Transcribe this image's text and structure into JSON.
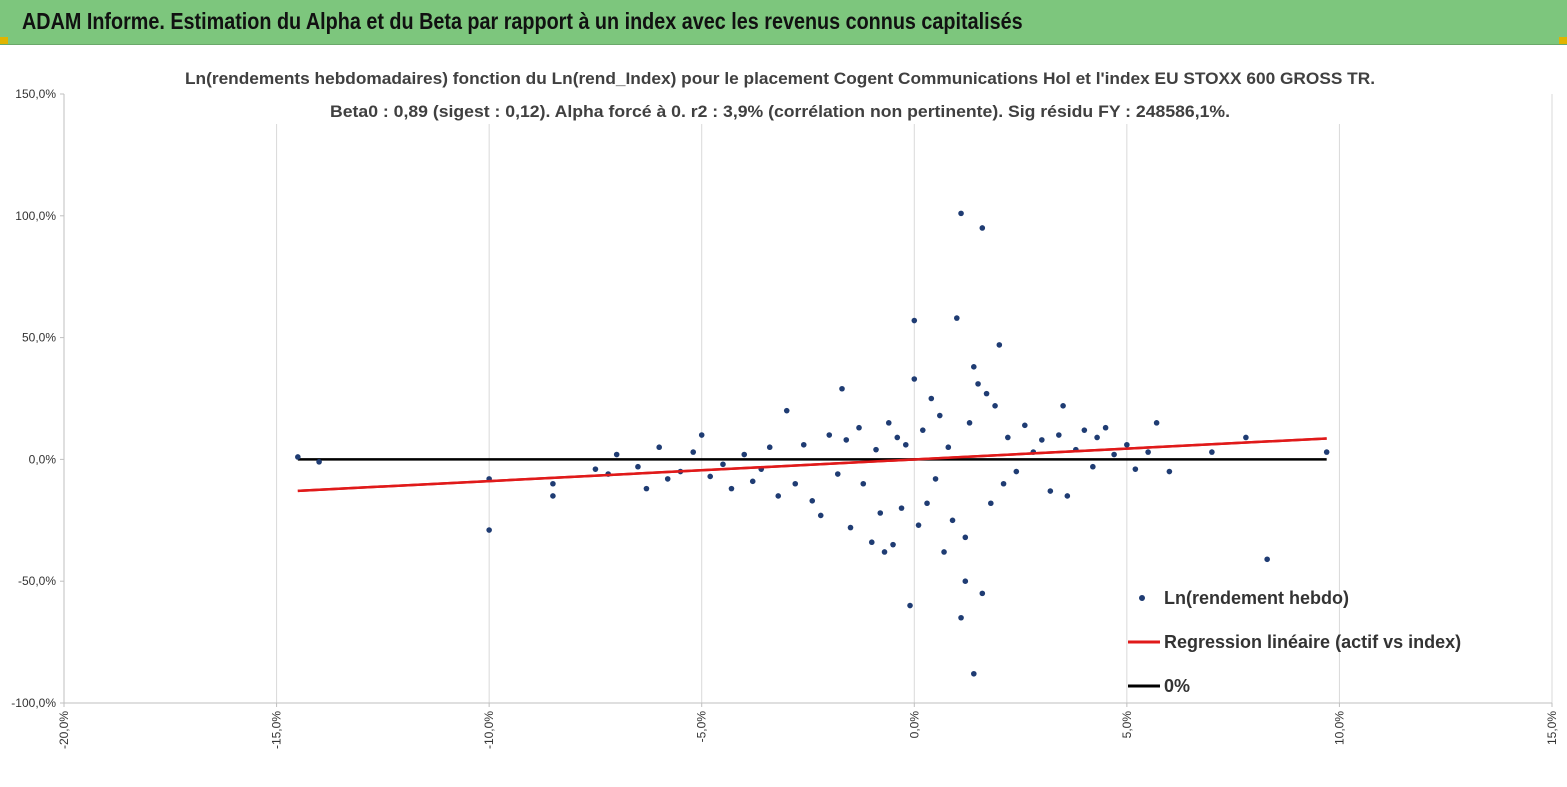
{
  "banner": {
    "title": "ADAM Informe. Estimation du Alpha et du Beta par rapport à un index avec les revenus connus capitalisés",
    "background_color": "#7dc67d",
    "corner_color": "#e0b400"
  },
  "chart_data": {
    "type": "scatter",
    "title_line1": "Ln(rendements hebdomadaires) fonction du Ln(rend_Index) pour le placement Cogent Communications Hol et l'index EU STOXX 600 GROSS TR.",
    "title_line2": "Beta0 : 0,89 (sigest : 0,12). Alpha forcé à 0. r2 : 3,9% (corrélation non pertinente). Sig résidu FY : 248586,1%.",
    "xlim": [
      -0.2,
      0.15
    ],
    "ylim": [
      -1.0,
      1.5
    ],
    "x_ticks": [
      -0.2,
      -0.15,
      -0.1,
      -0.05,
      0.0,
      0.05,
      0.1,
      0.15
    ],
    "x_tick_labels": [
      "-20,0%",
      "-15,0%",
      "-10,0%",
      "-5,0%",
      "0,0%",
      "5,0%",
      "10,0%",
      "15,0%"
    ],
    "y_ticks": [
      1.5,
      1.0,
      0.5,
      0.0,
      -0.5,
      -1.0
    ],
    "y_tick_labels": [
      "150,0%",
      "100,0%",
      "50,0%",
      "0,0%",
      "-50,0%",
      "-100,0%"
    ],
    "grid": "vertical",
    "legend_position": "bottom-right",
    "series": [
      {
        "name": "Ln(rendement hebdo)",
        "kind": "scatter",
        "color": "#1f3c73",
        "points": [
          [
            -0.145,
            0.01
          ],
          [
            -0.14,
            -0.01
          ],
          [
            -0.1,
            -0.29
          ],
          [
            -0.1,
            -0.08
          ],
          [
            -0.085,
            -0.15
          ],
          [
            -0.085,
            -0.1
          ],
          [
            -0.075,
            -0.04
          ],
          [
            -0.072,
            -0.06
          ],
          [
            -0.07,
            0.02
          ],
          [
            -0.065,
            -0.03
          ],
          [
            -0.063,
            -0.12
          ],
          [
            -0.06,
            0.05
          ],
          [
            -0.058,
            -0.08
          ],
          [
            -0.055,
            -0.05
          ],
          [
            -0.052,
            0.03
          ],
          [
            -0.05,
            0.1
          ],
          [
            -0.048,
            -0.07
          ],
          [
            -0.045,
            -0.02
          ],
          [
            -0.043,
            -0.12
          ],
          [
            -0.04,
            0.02
          ],
          [
            -0.038,
            -0.09
          ],
          [
            -0.036,
            -0.04
          ],
          [
            -0.034,
            0.05
          ],
          [
            -0.032,
            -0.15
          ],
          [
            -0.03,
            0.2
          ],
          [
            -0.028,
            -0.1
          ],
          [
            -0.026,
            0.06
          ],
          [
            -0.024,
            -0.17
          ],
          [
            -0.022,
            -0.23
          ],
          [
            -0.02,
            0.1
          ],
          [
            -0.018,
            -0.06
          ],
          [
            -0.017,
            0.29
          ],
          [
            -0.016,
            0.08
          ],
          [
            -0.015,
            -0.28
          ],
          [
            -0.013,
            0.13
          ],
          [
            -0.012,
            -0.1
          ],
          [
            -0.01,
            -0.34
          ],
          [
            -0.009,
            0.04
          ],
          [
            -0.008,
            -0.22
          ],
          [
            -0.007,
            -0.38
          ],
          [
            -0.006,
            0.15
          ],
          [
            -0.005,
            -0.35
          ],
          [
            -0.004,
            0.09
          ],
          [
            -0.003,
            -0.2
          ],
          [
            -0.002,
            0.06
          ],
          [
            -0.001,
            -0.6
          ],
          [
            0.0,
            0.57
          ],
          [
            0.0,
            0.33
          ],
          [
            0.001,
            -0.27
          ],
          [
            0.002,
            0.12
          ],
          [
            0.003,
            -0.18
          ],
          [
            0.004,
            0.25
          ],
          [
            0.005,
            -0.08
          ],
          [
            0.006,
            0.18
          ],
          [
            0.007,
            -0.38
          ],
          [
            0.008,
            0.05
          ],
          [
            0.009,
            -0.25
          ],
          [
            0.01,
            0.58
          ],
          [
            0.011,
            1.01
          ],
          [
            0.011,
            -0.65
          ],
          [
            0.012,
            -0.32
          ],
          [
            0.012,
            -0.5
          ],
          [
            0.013,
            0.15
          ],
          [
            0.014,
            -0.88
          ],
          [
            0.014,
            0.38
          ],
          [
            0.015,
            0.31
          ],
          [
            0.016,
            -0.55
          ],
          [
            0.016,
            0.95
          ],
          [
            0.017,
            0.27
          ],
          [
            0.018,
            -0.18
          ],
          [
            0.019,
            0.22
          ],
          [
            0.02,
            0.47
          ],
          [
            0.021,
            -0.1
          ],
          [
            0.022,
            0.09
          ],
          [
            0.024,
            -0.05
          ],
          [
            0.026,
            0.14
          ],
          [
            0.028,
            0.03
          ],
          [
            0.03,
            0.08
          ],
          [
            0.032,
            -0.13
          ],
          [
            0.034,
            0.1
          ],
          [
            0.035,
            0.22
          ],
          [
            0.036,
            -0.15
          ],
          [
            0.038,
            0.04
          ],
          [
            0.04,
            0.12
          ],
          [
            0.042,
            -0.03
          ],
          [
            0.043,
            0.09
          ],
          [
            0.045,
            0.13
          ],
          [
            0.047,
            0.02
          ],
          [
            0.05,
            0.06
          ],
          [
            0.052,
            -0.04
          ],
          [
            0.055,
            0.03
          ],
          [
            0.057,
            0.15
          ],
          [
            0.06,
            -0.05
          ],
          [
            0.07,
            0.03
          ],
          [
            0.078,
            0.09
          ],
          [
            0.083,
            -0.41
          ],
          [
            0.097,
            0.03
          ]
        ]
      },
      {
        "name": "Regression linéaire (actif vs index)",
        "kind": "line",
        "color": "#e01a1a",
        "points": [
          [
            -0.145,
            -0.129
          ],
          [
            0.097,
            0.086
          ]
        ]
      },
      {
        "name": "0%",
        "kind": "line",
        "color": "#000000",
        "points": [
          [
            -0.145,
            0.0
          ],
          [
            0.097,
            0.0
          ]
        ]
      }
    ]
  }
}
